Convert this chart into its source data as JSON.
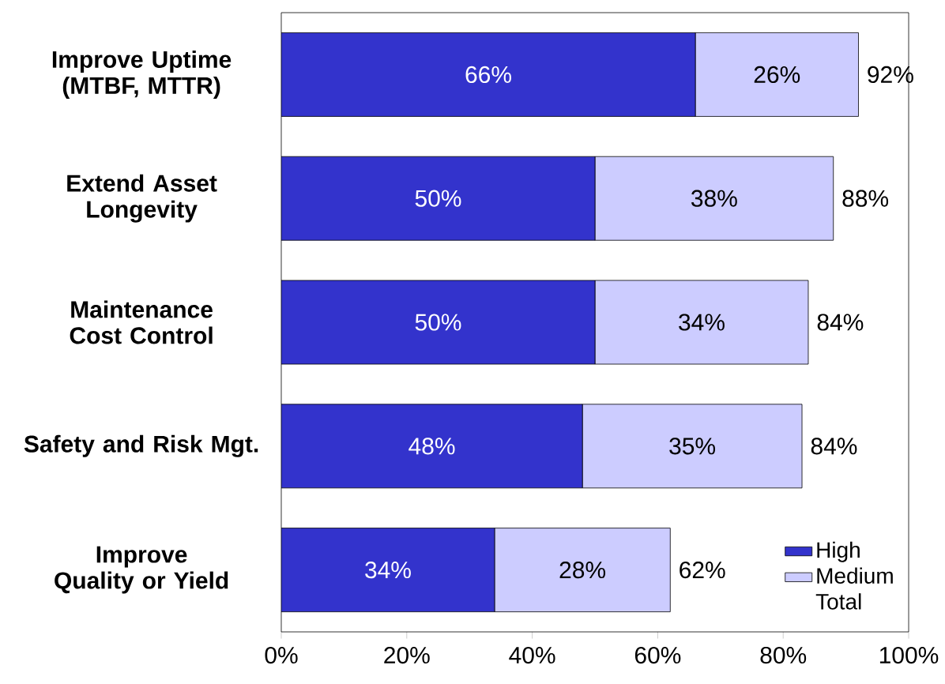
{
  "chart_data": {
    "type": "bar",
    "orientation": "horizontal",
    "stacked": true,
    "categories": [
      "Improve Uptime (MTBF, MTTR)",
      "Extend Asset Longevity",
      "Maintenance Cost Control",
      "Safety and Risk Mgt.",
      "Improve Quality or Yield"
    ],
    "series": [
      {
        "name": "High",
        "color": "#3333cc",
        "values": [
          66,
          50,
          50,
          48,
          34
        ],
        "value_labels": [
          "66%",
          "50%",
          "50%",
          "48%",
          "34%"
        ]
      },
      {
        "name": "Medium",
        "color": "#ccccff",
        "values": [
          26,
          38,
          34,
          35,
          28
        ],
        "value_labels": [
          "26%",
          "38%",
          "34%",
          "35%",
          "28%"
        ]
      }
    ],
    "totals": [
      "92%",
      "88%",
      "84%",
      "84%",
      "62%"
    ],
    "annotations": [
      "Total"
    ],
    "xlim": [
      0,
      100
    ],
    "xticks": [
      {
        "value": 0,
        "label": "0%"
      },
      {
        "value": 20,
        "label": "20%"
      },
      {
        "value": 40,
        "label": "40%"
      },
      {
        "value": 60,
        "label": "60%"
      },
      {
        "value": 80,
        "label": "80%"
      },
      {
        "value": 100,
        "label": "100%"
      }
    ],
    "grid": false,
    "legend": "bottom right"
  }
}
